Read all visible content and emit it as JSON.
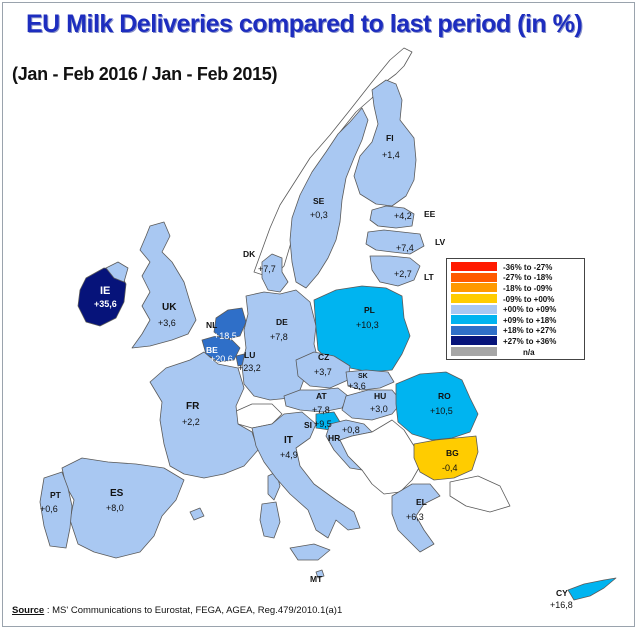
{
  "title": "EU Milk Deliveries compared to last period (in %)",
  "subtitle": "(Jan - Feb 2016 / Jan - Feb 2015)",
  "colors": {
    "c_neg36_27": "#ff1a00",
    "c_neg27_18": "#ff5a00",
    "c_neg18_09": "#ff9900",
    "c_neg09_00": "#ffcc00",
    "c_00_09": "#a9c8f2",
    "c_09_18": "#00b4f0",
    "c_18_27": "#2f6fc8",
    "c_27_36": "#06137a",
    "c_na": "#a6a6a6",
    "non_eu": "#ffffff",
    "sea": "#ffffff",
    "border": "#5a5a5a"
  },
  "legend": [
    {
      "label": "-36%  to  -27%",
      "color_key": "c_neg36_27"
    },
    {
      "label": "-27%  to  -18%",
      "color_key": "c_neg27_18"
    },
    {
      "label": "-18%  to  -09%",
      "color_key": "c_neg18_09"
    },
    {
      "label": "-09%  to  +00%",
      "color_key": "c_neg09_00"
    },
    {
      "label": "+00%  to  +09%",
      "color_key": "c_00_09"
    },
    {
      "label": "+09%  to  +18%",
      "color_key": "c_09_18"
    },
    {
      "label": "+18%  to  +27%",
      "color_key": "c_18_27"
    },
    {
      "label": "+27%  to  +36%",
      "color_key": "c_27_36"
    },
    {
      "label": "n/a",
      "color_key": "c_na"
    }
  ],
  "countries": {
    "FI": {
      "code": "FI",
      "value": "+1,4"
    },
    "SE": {
      "code": "SE",
      "value": "+0,3"
    },
    "EE": {
      "code": "EE",
      "value": "+4,2"
    },
    "LV": {
      "code": "LV",
      "value": "+7,4"
    },
    "LT": {
      "code": "LT",
      "value": "+2,7"
    },
    "DK": {
      "code": "DK",
      "value": "+7,7"
    },
    "IE": {
      "code": "IE",
      "value": "+35,6"
    },
    "UK": {
      "code": "UK",
      "value": "+3,6"
    },
    "NL": {
      "code": "NL",
      "value": "+18,5"
    },
    "BE": {
      "code": "BE",
      "value": "+20,6"
    },
    "LU": {
      "code": "LU",
      "value": "+23,2"
    },
    "DE": {
      "code": "DE",
      "value": "+7,8"
    },
    "PL": {
      "code": "PL",
      "value": "+10,3"
    },
    "CZ": {
      "code": "CZ",
      "value": "+3,7"
    },
    "SK": {
      "code": "SK",
      "value": "+3,6"
    },
    "HU": {
      "code": "HU",
      "value": "+3,0"
    },
    "AT": {
      "code": "AT",
      "value": "+7,8"
    },
    "SI": {
      "code": "SI",
      "value": "+9,5"
    },
    "HR": {
      "code": "HR",
      "value": "+0,8"
    },
    "RO": {
      "code": "RO",
      "value": "+10,5"
    },
    "BG": {
      "code": "BG",
      "value": "-0,4"
    },
    "FR": {
      "code": "FR",
      "value": "+2,2"
    },
    "IT": {
      "code": "IT",
      "value": "+4,9"
    },
    "ES": {
      "code": "ES",
      "value": "+8,0"
    },
    "PT": {
      "code": "PT",
      "value": "+0,6"
    },
    "EL": {
      "code": "EL",
      "value": "+6,3"
    },
    "MT": {
      "code": "MT",
      "value": ""
    },
    "CY": {
      "code": "CY",
      "value": "+16,8"
    }
  },
  "source": {
    "label": "Source",
    "text": " : MS' Communications to Eurostat, FEGA, AGEA, Reg.479/2010.1(a)1"
  }
}
